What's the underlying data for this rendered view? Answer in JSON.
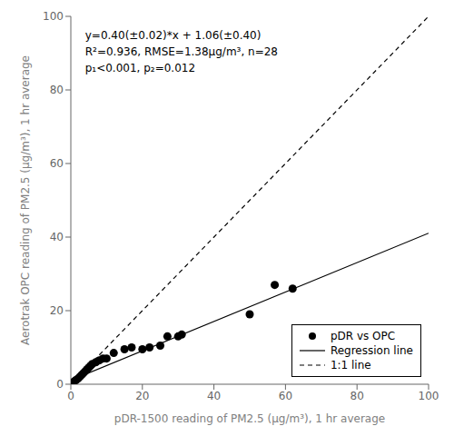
{
  "chart_data": {
    "type": "scatter",
    "xlabel": "pDR-1500 reading of PM2.5 (μg/m³), 1 hr average",
    "ylabel": "Aerotrak OPC reading of PM2.5 (μg/m³), 1 hr average",
    "annotations": [
      "y=0.40(±0.02)*x + 1.06(±0.40)",
      "R²=0.936, RMSE=1.38μg/m³, n=28",
      "p₁<0.001, p₂=0.012"
    ],
    "series": [
      {
        "name": "pDR vs OPC",
        "type": "scatter",
        "marker": "circle",
        "color": "#000000",
        "x": [
          0.5,
          1.0,
          1.5,
          2.0,
          2.5,
          3.0,
          3.5,
          4.0,
          4.5,
          5.0,
          5.5,
          6.0,
          7.0,
          8.0,
          9.0,
          10.0,
          12.0,
          15.0,
          17.0,
          20.0,
          22.0,
          25.0,
          27.0,
          30.0,
          31.0,
          50.0,
          57.0,
          62.0
        ],
        "values": [
          0.3,
          0.8,
          1.2,
          1.5,
          2.0,
          2.5,
          3.0,
          3.5,
          4.0,
          4.5,
          5.0,
          5.5,
          6.0,
          6.5,
          7.0,
          7.0,
          8.5,
          9.5,
          10.0,
          9.5,
          10.0,
          10.5,
          13.0,
          13.0,
          13.5,
          19.0,
          27.0,
          26.0
        ]
      },
      {
        "name": "Regression line",
        "type": "line",
        "line_style": "solid",
        "color": "#000000",
        "x": [
          0,
          100
        ],
        "values": [
          1.06,
          41.06
        ]
      },
      {
        "name": "1:1 line",
        "type": "line",
        "line_style": "dashed",
        "color": "#000000",
        "x": [
          0,
          100
        ],
        "values": [
          0,
          100
        ]
      }
    ],
    "xlim": [
      0,
      100
    ],
    "ylim": [
      0,
      100
    ],
    "xticks": [
      0,
      20,
      40,
      60,
      80,
      100
    ],
    "yticks": [
      0,
      20,
      40,
      60,
      80,
      100
    ],
    "legend": "lower right",
    "grid": false
  }
}
